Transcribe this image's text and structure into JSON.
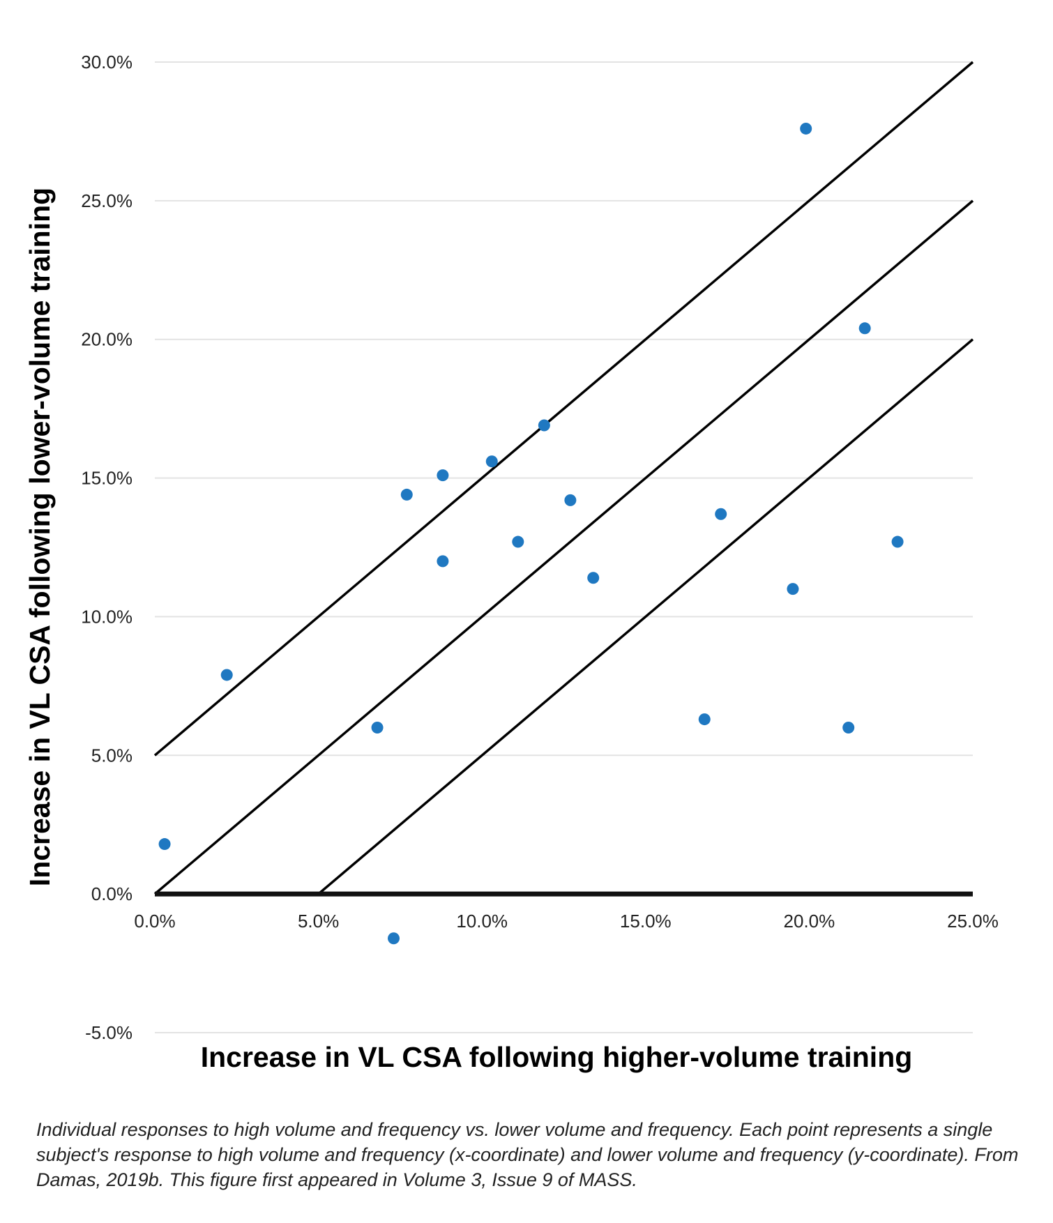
{
  "chart_data": {
    "type": "scatter",
    "xlabel": "Increase in VL CSA following higher-volume training",
    "ylabel": "Increase in VL CSA following lower-volume training",
    "xlim": [
      0,
      25
    ],
    "ylim": [
      -5,
      30
    ],
    "x_ticks": [
      "0.0%",
      "5.0%",
      "10.0%",
      "15.0%",
      "20.0%",
      "25.0%"
    ],
    "x_tick_values": [
      0,
      5,
      10,
      15,
      20,
      25
    ],
    "y_ticks": [
      "30.0%",
      "25.0%",
      "20.0%",
      "15.0%",
      "10.0%",
      "5.0%",
      "0.0%",
      "-5.0%"
    ],
    "y_tick_values": [
      30,
      25,
      20,
      15,
      10,
      5,
      0,
      -5
    ],
    "grid": true,
    "point_color": "#1f78c1",
    "points": [
      {
        "x": 0.3,
        "y": 1.8
      },
      {
        "x": 2.2,
        "y": 7.9
      },
      {
        "x": 6.8,
        "y": 6.0
      },
      {
        "x": 7.3,
        "y": -1.6
      },
      {
        "x": 7.7,
        "y": 14.4
      },
      {
        "x": 8.8,
        "y": 15.1
      },
      {
        "x": 8.8,
        "y": 12.0
      },
      {
        "x": 10.3,
        "y": 15.6
      },
      {
        "x": 11.1,
        "y": 12.7
      },
      {
        "x": 11.9,
        "y": 16.9
      },
      {
        "x": 12.7,
        "y": 14.2
      },
      {
        "x": 13.4,
        "y": 11.4
      },
      {
        "x": 16.8,
        "y": 6.3
      },
      {
        "x": 17.3,
        "y": 13.7
      },
      {
        "x": 19.5,
        "y": 11.0
      },
      {
        "x": 19.9,
        "y": 27.6
      },
      {
        "x": 21.2,
        "y": 6.0
      },
      {
        "x": 21.7,
        "y": 20.4
      },
      {
        "x": 22.7,
        "y": 12.7
      }
    ],
    "reference_lines": [
      {
        "x1": 0,
        "y1": 5,
        "x2": 25,
        "y2": 30
      },
      {
        "x1": 0,
        "y1": 0,
        "x2": 25,
        "y2": 25
      },
      {
        "x1": 5,
        "y1": 0,
        "x2": 25,
        "y2": 20
      }
    ]
  },
  "caption": "Individual responses to high volume and frequency vs. lower volume and frequency. Each point represents a single subject's response to high volume and frequency (x-coordinate) and lower volume and frequency (y-coordinate). From Damas, 2019b. This figure first appeared in Volume 3, Issue 9 of MASS."
}
